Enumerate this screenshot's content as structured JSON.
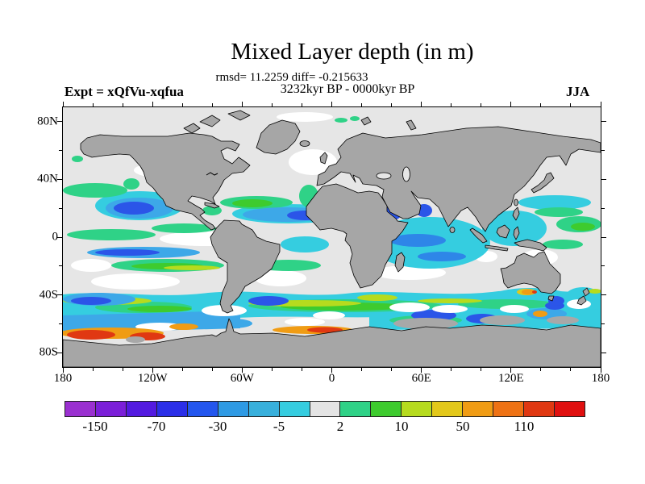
{
  "header": {
    "title": "Mixed Layer depth (in m)",
    "stats_line": "rmsd= 11.2259 diff= -0.215633",
    "period_line": "3232kyr BP - 0000kyr BP",
    "experiment_label": "Expt = xQfVu-xqfua",
    "season_label": "JJA"
  },
  "chart_data": {
    "type": "heatmap",
    "title": "Mixed Layer depth (in m)",
    "subtitle_stats": "rmsd= 11.2259 diff= -0.215633",
    "subtitle_period": "3232kyr BP - 0000kyr BP",
    "rmsd": 11.2259,
    "diff": -0.215633,
    "experiment": "xQfVu-xqfua",
    "season": "JJA",
    "projection": "equirectangular world map, lat 90N to 90S, lon 180W to 180E",
    "x_axis": {
      "tick_labels": [
        "180",
        "120W",
        "60W",
        "0",
        "60E",
        "120E",
        "180"
      ],
      "major_tick_lons": [
        -180,
        -120,
        -60,
        0,
        60,
        120,
        180
      ],
      "minor_step_deg": 20
    },
    "y_axis": {
      "tick_labels": [
        "80N",
        "40N",
        "0",
        "40S",
        "80S"
      ],
      "major_tick_lats": [
        80,
        40,
        0,
        -40,
        -80
      ],
      "minor_step_deg": 20
    },
    "colorbar": {
      "levels": [
        -150,
        -110,
        -70,
        -50,
        -30,
        -10,
        -5,
        -2,
        2,
        5,
        10,
        30,
        50,
        70,
        110,
        150
      ],
      "segment_colors": [
        "#9a30d0",
        "#7b1fd8",
        "#531ae0",
        "#2b2fe8",
        "#2356ee",
        "#2e9ae4",
        "#38b0dc",
        "#35cde0",
        "#e4e4e4",
        "#2fd287",
        "#3ecb2e",
        "#b6db1e",
        "#e3c81a",
        "#f09c14",
        "#ee7214",
        "#e03812",
        "#e01010"
      ],
      "labels": [
        "-150",
        "-70",
        "-30",
        "-5",
        "2",
        "10",
        "50",
        "110"
      ],
      "label_boundary_indices": [
        0,
        2,
        4,
        6,
        8,
        10,
        12,
        14
      ]
    },
    "land_color": "#a6a6a6",
    "near_zero_color": "#e6e6e6",
    "coastline_color": "#000000"
  }
}
